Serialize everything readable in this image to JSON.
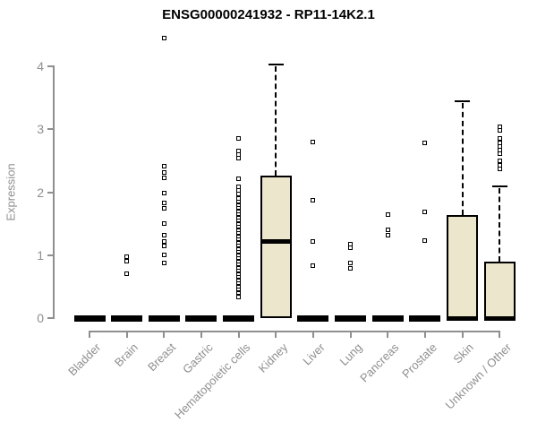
{
  "chart_data": {
    "type": "boxplot",
    "title": "ENSG00000241932 - RP11-14K2.1",
    "ylabel": "Expression",
    "xlabel": "",
    "ylim": [
      0,
      4
    ],
    "yticks": [
      0,
      1,
      2,
      3,
      4
    ],
    "grid": false,
    "legend": "none",
    "categories": [
      "Bladder",
      "Brain",
      "Breast",
      "Gastric",
      "Hematopoietic cells",
      "Kidney",
      "Liver",
      "Lung",
      "Pancreas",
      "Prostate",
      "Skin",
      "Unknown / Other"
    ],
    "series": [
      {
        "category": "Bladder",
        "min": 0,
        "q1": 0,
        "median": 0,
        "q3": 0,
        "max": 0,
        "outliers": []
      },
      {
        "category": "Brain",
        "min": 0,
        "q1": 0,
        "median": 0,
        "q3": 0,
        "max": 0,
        "outliers": [
          0.98,
          0.91,
          0.7
        ]
      },
      {
        "category": "Breast",
        "min": 0,
        "q1": 0,
        "median": 0,
        "q3": 0,
        "max": 0,
        "outliers": [
          4.45,
          2.41,
          2.32,
          2.23,
          1.99,
          1.83,
          1.74,
          1.5,
          1.31,
          1.22,
          1.15,
          1.0,
          0.87
        ]
      },
      {
        "category": "Gastric",
        "min": 0,
        "q1": 0,
        "median": 0,
        "q3": 0,
        "max": 0,
        "outliers": []
      },
      {
        "category": "Hematopoietic cells",
        "min": 0,
        "q1": 0,
        "median": 0,
        "q3": 0,
        "max": 0,
        "outliers": [
          2.85,
          2.66,
          2.6,
          2.54,
          2.22,
          2.08,
          2.03,
          1.97,
          1.9,
          1.85,
          1.8,
          1.75,
          1.7,
          1.65,
          1.6,
          1.55,
          1.5,
          1.45,
          1.4,
          1.35,
          1.3,
          1.25,
          1.2,
          1.15,
          1.1,
          1.05,
          1.0,
          0.95,
          0.9,
          0.85,
          0.8,
          0.75,
          0.7,
          0.65,
          0.6,
          0.55,
          0.5,
          0.45,
          0.4,
          0.34
        ]
      },
      {
        "category": "Kidney",
        "min": 0,
        "q1": 0,
        "median": 1.22,
        "q3": 2.27,
        "max": 4.03,
        "outliers": []
      },
      {
        "category": "Liver",
        "min": 0,
        "q1": 0,
        "median": 0,
        "q3": 0,
        "max": 0,
        "outliers": [
          2.8,
          1.87,
          1.21,
          0.83
        ]
      },
      {
        "category": "Lung",
        "min": 0,
        "q1": 0,
        "median": 0,
        "q3": 0,
        "max": 0,
        "outliers": [
          1.18,
          1.12,
          0.88,
          0.79
        ]
      },
      {
        "category": "Pancreas",
        "min": 0,
        "q1": 0,
        "median": 0,
        "q3": 0,
        "max": 0,
        "outliers": [
          1.65,
          1.4,
          1.31
        ]
      },
      {
        "category": "Prostate",
        "min": 0,
        "q1": 0,
        "median": 0,
        "q3": 0,
        "max": 0,
        "outliers": [
          2.78,
          1.68,
          1.23
        ]
      },
      {
        "category": "Skin",
        "min": 0,
        "q1": 0,
        "median": 0,
        "q3": 1.64,
        "max": 3.44,
        "outliers": []
      },
      {
        "category": "Unknown / Other",
        "min": 0,
        "q1": 0,
        "median": 0,
        "q3": 0.9,
        "max": 2.09,
        "outliers": [
          3.04,
          2.98,
          2.85,
          2.79,
          2.73,
          2.67,
          2.61,
          2.5,
          2.43,
          2.37
        ]
      }
    ],
    "colors": {
      "box_fill": "#ECE6CC",
      "box_border": "#000000",
      "median": "#000000",
      "whisker": "#000000",
      "outlier": "#000000",
      "axis": "#8f8f8f",
      "tick_label": "#8f8f8f",
      "title": "#000000",
      "background": "#ffffff"
    }
  }
}
